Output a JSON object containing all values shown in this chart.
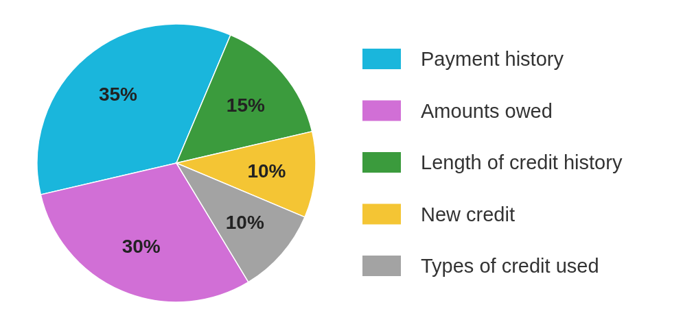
{
  "chart_data": {
    "type": "pie",
    "categories": [
      "Payment history",
      "Amounts owed",
      "Length of credit history",
      "New credit",
      "Types of credit used"
    ],
    "values": [
      35,
      30,
      15,
      10,
      10
    ],
    "colors": [
      "#1ab6dc",
      "#d16fd6",
      "#3b9b3d",
      "#f4c534",
      "#a3a3a3"
    ],
    "value_labels": [
      "35%",
      "30%",
      "15%",
      "10%",
      "10%"
    ],
    "legend": "right"
  }
}
